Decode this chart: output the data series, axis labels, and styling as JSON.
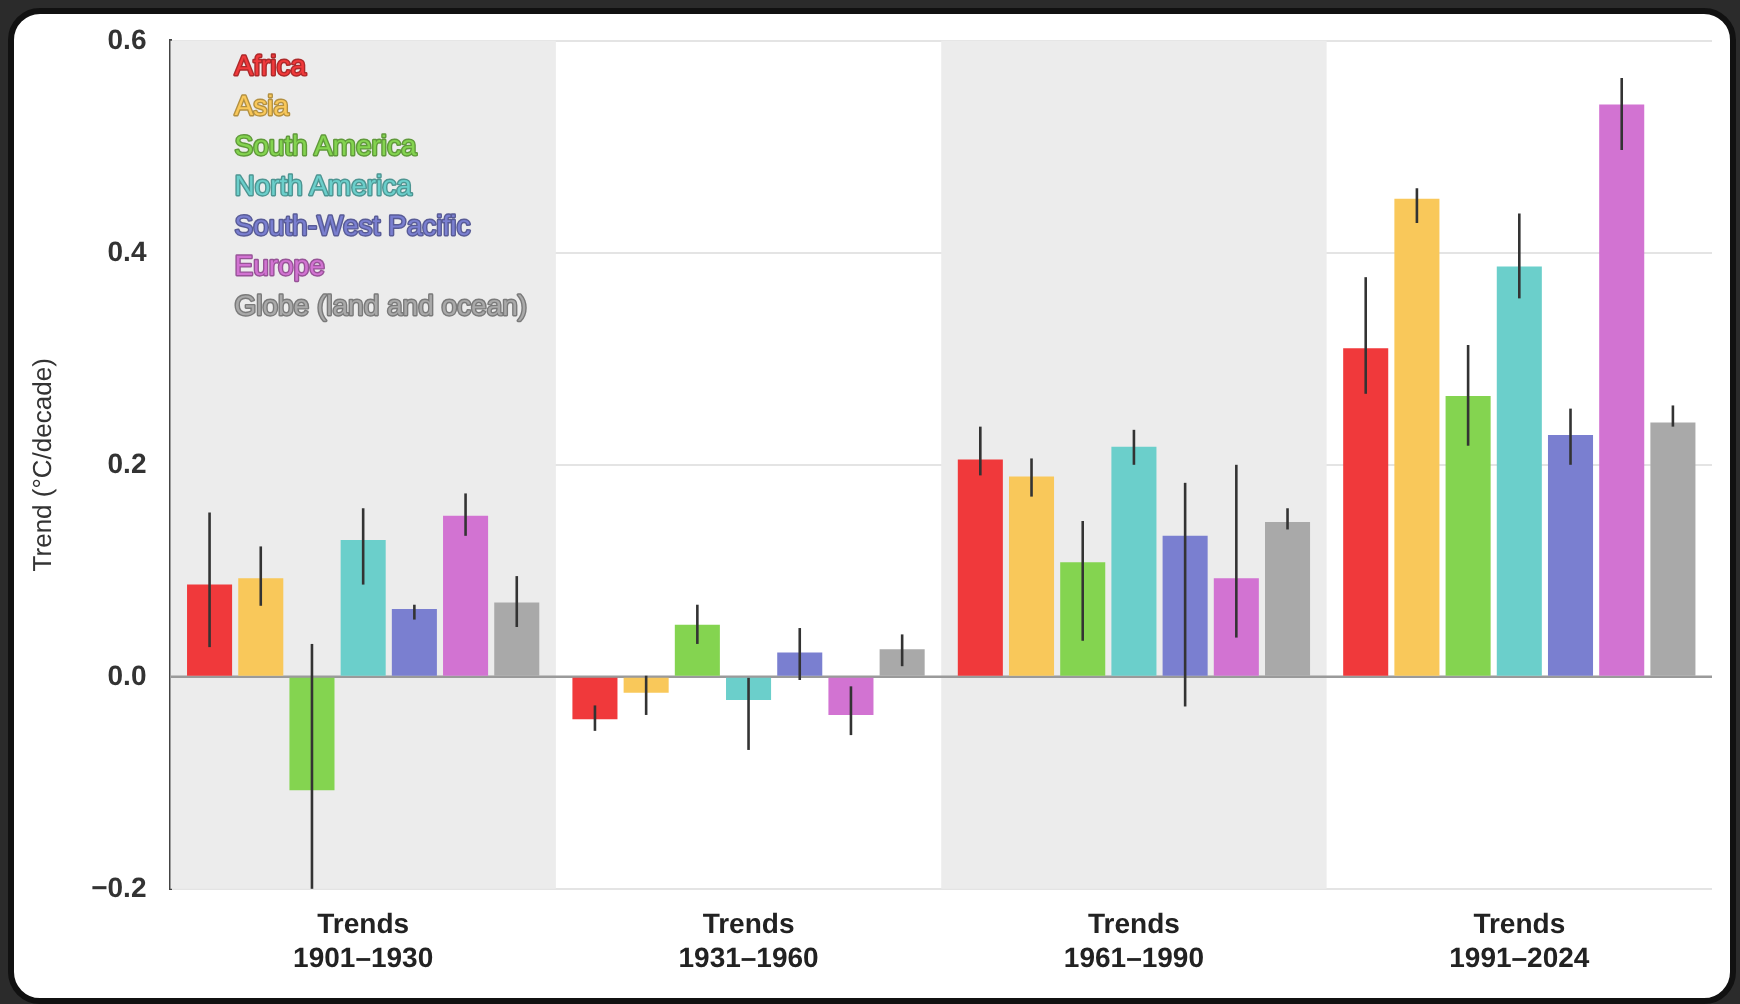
{
  "chart_data": {
    "type": "bar",
    "categories": [
      "Trends\n1901–1930",
      "Trends\n1931–1960",
      "Trends\n1961–1990",
      "Trends\n1991–2024"
    ],
    "ylabel": "Trend (°C/decade)",
    "ylim": [
      -0.2,
      0.6
    ],
    "yticks": [
      {
        "value": -0.2,
        "label": "−0.2"
      },
      {
        "value": 0,
        "label": "0.0"
      },
      0.2,
      0.4,
      0.6
    ],
    "grid": "y",
    "legend": "top left",
    "bands": [
      {
        "axis": "x",
        "from": "Trends\n1901–1930",
        "to": "Trends\n1901–1930",
        "color": "#ececec"
      },
      {
        "axis": "x",
        "from": "Trends\n1961–1990",
        "to": "Trends\n1961–1990",
        "color": "#ececec"
      }
    ],
    "series": [
      {
        "name": "Africa",
        "color": "#f0393b",
        "values": [
          0.087,
          -0.04,
          0.205,
          0.31
        ],
        "errors": [
          [
            0.028,
            0.155
          ],
          [
            -0.051,
            -0.027
          ],
          [
            0.19,
            0.236
          ],
          [
            0.267,
            0.377
          ]
        ]
      },
      {
        "name": "Asia",
        "color": "#f9c85a",
        "values": [
          0.093,
          -0.015,
          0.189,
          0.451
        ],
        "errors": [
          [
            0.067,
            0.123
          ],
          [
            -0.036,
            0.001
          ],
          [
            0.17,
            0.206
          ],
          [
            0.428,
            0.461
          ]
        ]
      },
      {
        "name": "South America",
        "color": "#84d450",
        "values": [
          -0.107,
          0.049,
          0.108,
          0.265
        ],
        "errors": [
          [
            -0.2,
            0.031
          ],
          [
            0.031,
            0.068
          ],
          [
            0.034,
            0.147
          ],
          [
            0.218,
            0.313
          ]
        ]
      },
      {
        "name": "North America",
        "color": "#6bcfcb",
        "values": [
          0.129,
          -0.022,
          0.217,
          0.387
        ],
        "errors": [
          [
            0.087,
            0.159
          ],
          [
            -0.069,
            -0.001
          ],
          [
            0.2,
            0.233
          ],
          [
            0.357,
            0.437
          ]
        ]
      },
      {
        "name": "South-West Pacific",
        "color": "#7a7fd0",
        "values": [
          0.064,
          0.023,
          0.133,
          0.228
        ],
        "errors": [
          [
            0.054,
            0.068
          ],
          [
            -0.003,
            0.046
          ],
          [
            -0.028,
            0.183
          ],
          [
            0.2,
            0.253
          ]
        ]
      },
      {
        "name": "Europe",
        "color": "#d273d2",
        "values": [
          0.152,
          -0.036,
          0.093,
          0.54
        ],
        "errors": [
          [
            0.133,
            0.173
          ],
          [
            -0.055,
            -0.009
          ],
          [
            0.037,
            0.2
          ],
          [
            0.497,
            0.565
          ]
        ]
      },
      {
        "name": "Globe (land and ocean)",
        "color": "#a9a9a9",
        "values": [
          0.07,
          0.026,
          0.146,
          0.24
        ],
        "errors": [
          [
            0.047,
            0.095
          ],
          [
            0.01,
            0.04
          ],
          [
            0.139,
            0.159
          ],
          [
            0.236,
            0.256
          ]
        ]
      }
    ]
  }
}
